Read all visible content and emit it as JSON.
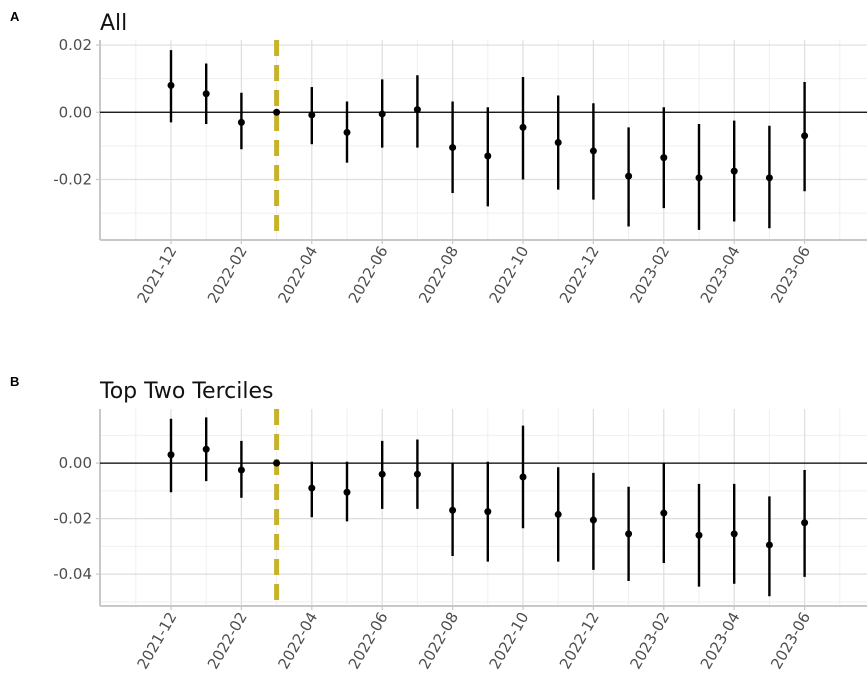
{
  "colors": {
    "grid_major": "#dedede",
    "grid_minor": "#efefef",
    "frame": "#c8c8c8",
    "marker": "#000000",
    "zero_line": "#000000",
    "vline": "#c6b22c",
    "tick_text": "#4d4d4d"
  },
  "chart_data": [
    {
      "panel": "A",
      "type": "scatter",
      "style": "point estimates with vertical confidence-interval error bars",
      "title": "All",
      "xlabel": "",
      "ylabel": "",
      "x": [
        "2021-12",
        "2022-01",
        "2022-02",
        "2022-03",
        "2022-04",
        "2022-05",
        "2022-06",
        "2022-07",
        "2022-08",
        "2022-09",
        "2022-10",
        "2022-11",
        "2022-12",
        "2023-01",
        "2023-02",
        "2023-03",
        "2023-04",
        "2023-05",
        "2023-06"
      ],
      "y": [
        0.008,
        0.0055,
        -0.003,
        0.0,
        -0.0008,
        -0.006,
        -0.0005,
        0.0008,
        -0.0105,
        -0.013,
        -0.0045,
        -0.009,
        -0.0115,
        -0.019,
        -0.0135,
        -0.0195,
        -0.0175,
        -0.0195,
        -0.007
      ],
      "lower": [
        -0.003,
        -0.0035,
        -0.011,
        0.0,
        -0.0095,
        -0.015,
        -0.0105,
        -0.0105,
        -0.024,
        -0.028,
        -0.02,
        -0.023,
        -0.026,
        -0.034,
        -0.0285,
        -0.035,
        -0.0325,
        -0.0345,
        -0.0235
      ],
      "upper": [
        0.0185,
        0.0145,
        0.0058,
        0.0,
        0.0075,
        0.0032,
        0.0098,
        0.011,
        0.0032,
        0.0015,
        0.0105,
        0.005,
        0.0027,
        -0.0045,
        0.0015,
        -0.0035,
        -0.0025,
        -0.004,
        0.009
      ],
      "x_tick_labels": [
        "2021-12",
        "2022-02",
        "2022-04",
        "2022-06",
        "2022-08",
        "2022-10",
        "2022-12",
        "2023-02",
        "2023-04",
        "2023-06"
      ],
      "y_ticks": [
        -0.02,
        0.0,
        0.02
      ],
      "y_tick_labels": [
        "-0.02",
        "0.00",
        "0.02"
      ],
      "ylim": [
        -0.038,
        0.0215
      ],
      "reference_hline": 0,
      "reference_vline_x": "2022-03",
      "grid": true
    },
    {
      "panel": "B",
      "type": "scatter",
      "style": "point estimates with vertical confidence-interval error bars",
      "title": "Top Two Terciles",
      "xlabel": "",
      "ylabel": "",
      "x": [
        "2021-12",
        "2022-01",
        "2022-02",
        "2022-03",
        "2022-04",
        "2022-05",
        "2022-06",
        "2022-07",
        "2022-08",
        "2022-09",
        "2022-10",
        "2022-11",
        "2022-12",
        "2023-01",
        "2023-02",
        "2023-03",
        "2023-04",
        "2023-05",
        "2023-06"
      ],
      "y": [
        0.003,
        0.005,
        -0.0025,
        0.0,
        -0.009,
        -0.0105,
        -0.004,
        -0.004,
        -0.017,
        -0.0175,
        -0.005,
        -0.0185,
        -0.0205,
        -0.0255,
        -0.018,
        -0.026,
        -0.0255,
        -0.0295,
        -0.0215
      ],
      "lower": [
        -0.0105,
        -0.0065,
        -0.0125,
        0.0,
        -0.0195,
        -0.021,
        -0.0165,
        -0.0165,
        -0.0335,
        -0.0355,
        -0.0235,
        -0.0355,
        -0.0385,
        -0.0425,
        -0.036,
        -0.0445,
        -0.0435,
        -0.048,
        -0.041
      ],
      "upper": [
        0.016,
        0.0165,
        0.008,
        0.0,
        0.0005,
        0.0005,
        0.008,
        0.0085,
        0.0,
        0.0005,
        0.0135,
        -0.0015,
        -0.0035,
        -0.0085,
        0.0,
        -0.0075,
        -0.0075,
        -0.012,
        -0.0025
      ],
      "x_tick_labels": [
        "2021-12",
        "2022-02",
        "2022-04",
        "2022-06",
        "2022-08",
        "2022-10",
        "2022-12",
        "2023-02",
        "2023-04",
        "2023-06"
      ],
      "y_ticks": [
        -0.04,
        -0.02,
        0.0
      ],
      "y_tick_labels": [
        "-0.04",
        "-0.02",
        "0.00"
      ],
      "ylim": [
        -0.0515,
        0.0195
      ],
      "reference_hline": 0,
      "reference_vline_x": "2022-03",
      "grid": true
    }
  ]
}
